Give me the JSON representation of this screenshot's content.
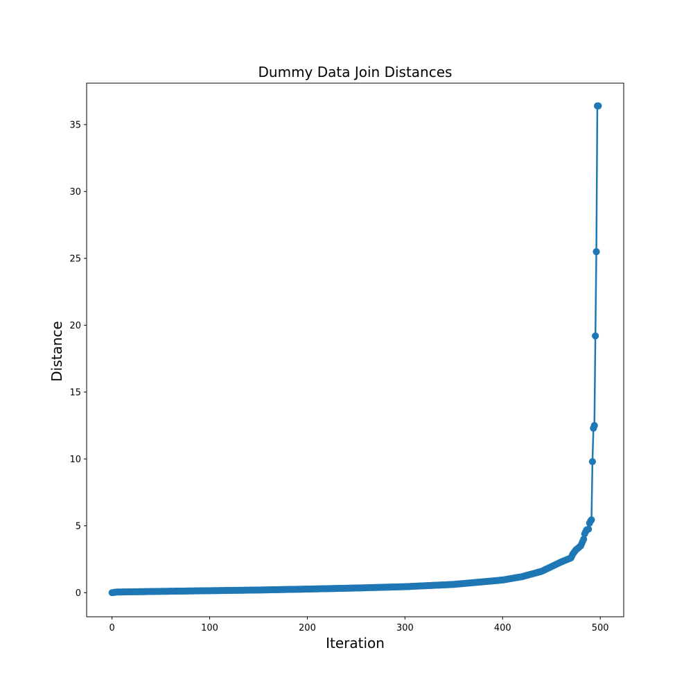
{
  "chart_data": {
    "type": "line",
    "title": "Dummy Data Join Distances",
    "xlabel": "Iteration",
    "ylabel": "Distance",
    "xlim": [
      -26,
      524
    ],
    "ylim": [
      -1.8,
      38.1
    ],
    "xticks": [
      0,
      100,
      200,
      300,
      400,
      500
    ],
    "yticks": [
      0,
      5,
      10,
      15,
      20,
      25,
      30,
      35
    ],
    "grid": false,
    "color": "#1f77b4",
    "marker": "circle",
    "n_points": 499,
    "series": [
      {
        "knots_x": [
          0,
          5,
          50,
          100,
          150,
          200,
          250,
          300,
          350,
          400,
          420,
          440,
          460,
          470,
          472,
          475,
          480,
          483,
          484,
          486,
          488,
          489,
          490,
          491,
          492,
          493,
          494,
          495,
          496,
          497,
          498
        ],
        "knots_y": [
          0.0,
          0.05,
          0.1,
          0.15,
          0.2,
          0.27,
          0.35,
          0.45,
          0.62,
          0.95,
          1.2,
          1.6,
          2.3,
          2.6,
          2.9,
          3.2,
          3.5,
          4.0,
          4.4,
          4.7,
          4.75,
          5.2,
          5.35,
          5.45,
          9.8,
          12.3,
          12.5,
          19.2,
          25.5,
          36.4,
          36.4
        ],
        "points": [
          {
            "x": 492,
            "y": 9.8
          },
          {
            "x": 493,
            "y": 12.3
          },
          {
            "x": 494,
            "y": 12.5
          },
          {
            "x": 495,
            "y": 19.2
          },
          {
            "x": 496,
            "y": 25.5
          },
          {
            "x": 498,
            "y": 36.4
          }
        ]
      }
    ]
  }
}
